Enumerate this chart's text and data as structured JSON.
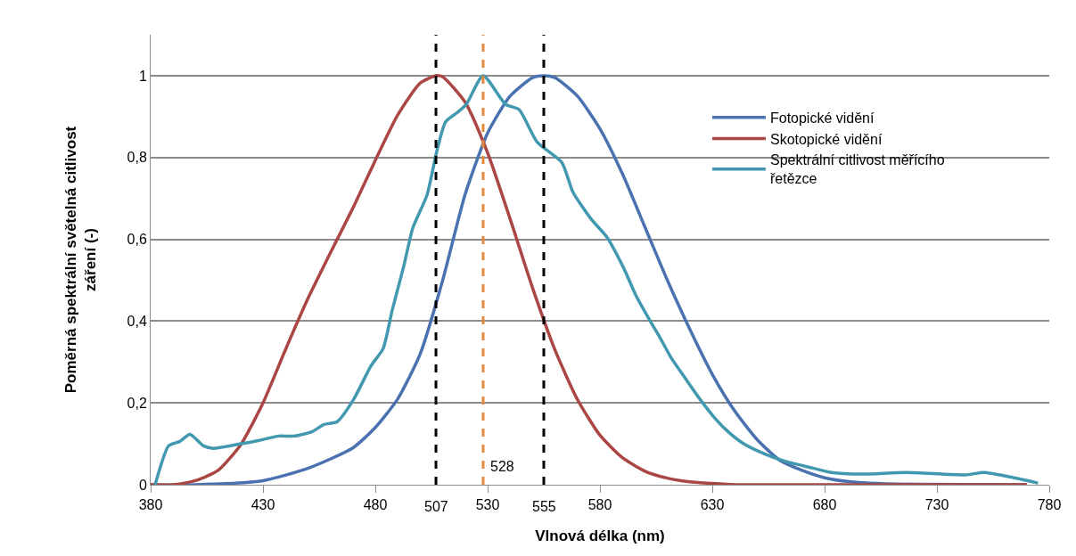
{
  "chart_data": {
    "type": "line",
    "xlabel": "Vlnová délka (nm)",
    "ylabel": "Poměrná spektrální světelná citlivost záření (-)",
    "xlim": [
      380,
      780
    ],
    "ylim": [
      0,
      1.1
    ],
    "xticks": [
      380,
      430,
      480,
      530,
      580,
      630,
      680,
      730,
      780
    ],
    "yticks": [
      0,
      {
        "value": 0.2,
        "label": "0,2"
      },
      {
        "value": 0.4,
        "label": "0,4"
      },
      {
        "value": 0.6,
        "label": "0,6"
      },
      {
        "value": 0.8,
        "label": "0,8"
      },
      1
    ],
    "grid": "y",
    "legend": "right",
    "marker": "none",
    "line_style": "solid",
    "series": [
      {
        "name": "Fotopické vidění",
        "color": "#4a72b0",
        "x": [
          380,
          400,
          430,
          450,
          470,
          480,
          490,
          500,
          510,
          520,
          530,
          540,
          550,
          555,
          560,
          570,
          580,
          590,
          600,
          610,
          620,
          630,
          640,
          650,
          660,
          670,
          680,
          690,
          700,
          720,
          770
        ],
        "values": [
          0,
          0,
          0.01,
          0.04,
          0.09,
          0.14,
          0.21,
          0.32,
          0.5,
          0.71,
          0.86,
          0.95,
          0.995,
          1,
          0.995,
          0.95,
          0.87,
          0.76,
          0.63,
          0.5,
          0.38,
          0.27,
          0.18,
          0.11,
          0.06,
          0.035,
          0.017,
          0.008,
          0.004,
          0.001,
          0
        ]
      },
      {
        "name": "Skotopické vidění",
        "color": "#aa4643",
        "x": [
          380,
          390,
          400,
          410,
          420,
          430,
          440,
          450,
          460,
          470,
          480,
          490,
          500,
          507,
          510,
          520,
          530,
          540,
          550,
          560,
          570,
          580,
          590,
          600,
          610,
          620,
          630,
          640,
          650,
          680,
          770
        ],
        "values": [
          0,
          0,
          0.01,
          0.035,
          0.097,
          0.2,
          0.33,
          0.455,
          0.567,
          0.676,
          0.793,
          0.904,
          0.982,
          1,
          0.997,
          0.935,
          0.811,
          0.65,
          0.481,
          0.329,
          0.208,
          0.121,
          0.066,
          0.033,
          0.016,
          0.007,
          0.003,
          0,
          0,
          0,
          0
        ]
      },
      {
        "name": "Spektrální citlivost měřícího řetězce",
        "color": "#4198af",
        "x": [
          382,
          388,
          393,
          397.5,
          403.5,
          408,
          420,
          428,
          437,
          444,
          452,
          457,
          463,
          470.5,
          478,
          483.5,
          487.5,
          492.7,
          496.7,
          503,
          507.4,
          511.3,
          516.5,
          520.5,
          528,
          538,
          544,
          552,
          563,
          568,
          576,
          583,
          590.7,
          596,
          602.6,
          606.6,
          611.7,
          617,
          623.6,
          631.6,
          637,
          643.5,
          653,
          662,
          673,
          683,
          696.7,
          716.5,
          742.7,
          751,
          762.5,
          775
        ],
        "values": [
          0,
          0.095,
          0.106,
          0.123,
          0.095,
          0.089,
          0.1,
          0.108,
          0.119,
          0.119,
          0.13,
          0.147,
          0.154,
          0.21,
          0.29,
          0.333,
          0.426,
          0.535,
          0.628,
          0.708,
          0.816,
          0.887,
          0.91,
          0.93,
          1,
          0.93,
          0.917,
          0.838,
          0.788,
          0.715,
          0.65,
          0.606,
          0.528,
          0.463,
          0.398,
          0.361,
          0.31,
          0.268,
          0.216,
          0.16,
          0.13,
          0.102,
          0.076,
          0.058,
          0.043,
          0.03,
          0.026,
          0.03,
          0.024,
          0.03,
          0.019,
          0.004
        ]
      }
    ],
    "ref_lines": [
      {
        "axis": "x",
        "value": 507,
        "label": "507",
        "color": "#000000",
        "line_style": "dashed"
      },
      {
        "axis": "x",
        "value": 528,
        "label": "528",
        "color": "#e3883a",
        "line_style": "dashed"
      },
      {
        "axis": "x",
        "value": 555,
        "label": "555",
        "color": "#000000",
        "line_style": "dashed"
      }
    ]
  }
}
